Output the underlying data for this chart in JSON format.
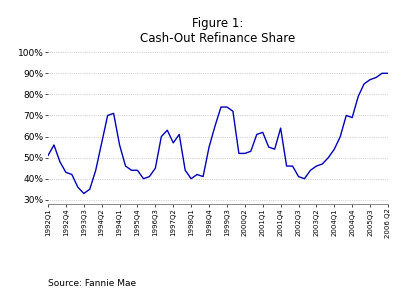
{
  "title": "Figure 1:\nCash-Out Refinance Share",
  "source": "Source: Fannie Mae",
  "line_color": "#0000BB",
  "background_color": "#ffffff",
  "plot_bg_color": "#ffffff",
  "grid_color": "#aaaaaa",
  "ylim": [
    0.28,
    1.02
  ],
  "yticks": [
    0.3,
    0.4,
    0.5,
    0.6,
    0.7,
    0.8,
    0.9,
    1.0
  ],
  "ytick_labels": [
    "30%",
    "40%",
    "50%",
    "60%",
    "70%",
    "80%",
    "90%",
    "100%"
  ],
  "y_data": [
    0.51,
    0.56,
    0.48,
    0.43,
    0.42,
    0.36,
    0.33,
    0.35,
    0.44,
    0.57,
    0.7,
    0.71,
    0.56,
    0.46,
    0.44,
    0.44,
    0.4,
    0.41,
    0.45,
    0.6,
    0.63,
    0.57,
    0.61,
    0.44,
    0.4,
    0.42,
    0.41,
    0.55,
    0.65,
    0.74,
    0.74,
    0.72,
    0.52,
    0.52,
    0.53,
    0.61,
    0.62,
    0.55,
    0.54,
    0.64,
    0.46,
    0.46,
    0.41,
    0.4,
    0.44,
    0.46,
    0.47,
    0.5,
    0.54,
    0.6,
    0.7,
    0.69,
    0.79,
    0.85,
    0.87,
    0.88,
    0.9,
    0.9
  ],
  "xtick_positions": [
    0,
    3,
    6,
    9,
    12,
    15,
    18,
    21,
    24,
    27,
    30,
    33,
    36,
    39,
    42,
    45,
    48,
    51,
    54,
    57
  ],
  "xtick_labels": [
    "1992Q1",
    "1992Q4",
    "1993Q3",
    "1994Q2",
    "1994Q1",
    "1995Q4",
    "1996Q3",
    "1997Q2",
    "1998Q1",
    "1998Q4",
    "1999Q3",
    "2000Q2",
    "2001Q1",
    "2001Q4",
    "2002Q3",
    "2003Q2",
    "2004Q1",
    "2004Q4",
    "2005Q3",
    "2006 Q2"
  ]
}
